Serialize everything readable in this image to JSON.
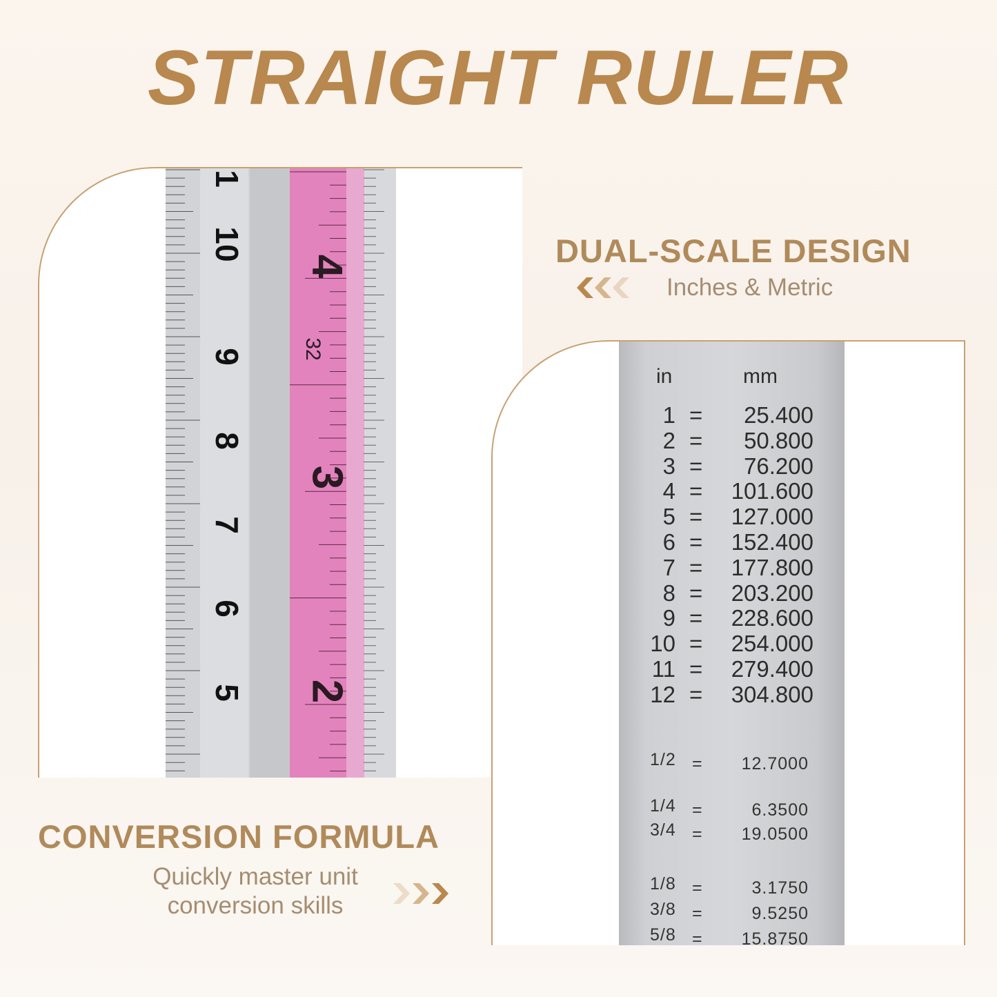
{
  "header": {
    "title": "STRAIGHT RULER"
  },
  "features": [
    {
      "title": "DUAL-SCALE DESIGN",
      "subtitle": [
        "Inches & Metric"
      ]
    },
    {
      "title": "CONVERSION FORMULA",
      "subtitle": [
        "Quickly master unit",
        "conversion skills"
      ]
    }
  ],
  "ruler_photo": {
    "cm_labels": [
      "1",
      "10",
      "9",
      "8",
      "7",
      "6",
      "5"
    ],
    "inch_labels": [
      "4",
      "32",
      "3",
      "2"
    ]
  },
  "conversion_table": {
    "columns": [
      "in",
      "mm"
    ],
    "rows": [
      [
        "1",
        "=",
        "25.400"
      ],
      [
        "2",
        "=",
        "50.800"
      ],
      [
        "3",
        "=",
        "76.200"
      ],
      [
        "4",
        "=",
        "101.600"
      ],
      [
        "5",
        "=",
        "127.000"
      ],
      [
        "6",
        "=",
        "152.400"
      ],
      [
        "7",
        "=",
        "177.800"
      ],
      [
        "8",
        "=",
        "203.200"
      ],
      [
        "9",
        "=",
        "228.600"
      ],
      [
        "10",
        "=",
        "254.000"
      ],
      [
        "11",
        "=",
        "279.400"
      ],
      [
        "12",
        "=",
        "304.800"
      ]
    ],
    "fraction_rows": [
      [
        "1/2",
        "=",
        "12.7000"
      ],
      [
        "1/4",
        "=",
        "6.3500"
      ],
      [
        "3/4",
        "=",
        "19.0500"
      ],
      [
        "1/8",
        "=",
        "3.1750"
      ],
      [
        "3/8",
        "=",
        "9.5250"
      ],
      [
        "5/8",
        "=",
        "15.8750"
      ]
    ]
  }
}
